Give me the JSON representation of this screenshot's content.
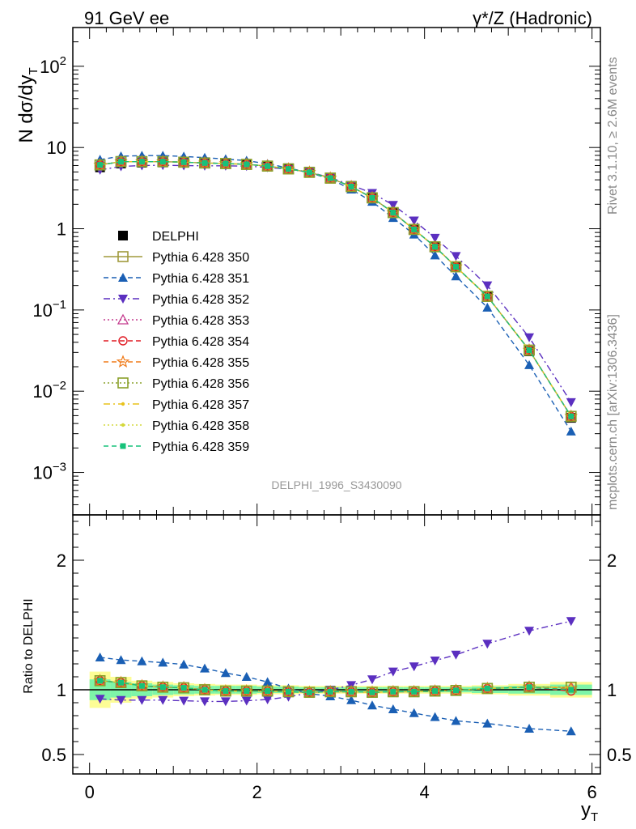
{
  "header": {
    "left": "91 GeV ee",
    "right": "γ*/Z (Hadronic)"
  },
  "side": {
    "rivet": "Rivet 3.1.10, ≥ 2.6M events",
    "mcplots": "mcplots.cern.ch [arXiv:1306.3436]"
  },
  "watermark": "DELPHI_1996_S3430090",
  "chart_data": [
    {
      "type": "line",
      "panel": "main",
      "ylabel": "N dσ/dy_T",
      "yscale": "log",
      "ylim": [
        0.0003,
        300
      ],
      "xlim": [
        -0.2,
        6.1
      ],
      "yticks": [
        "10^-3",
        "10^-2",
        "10^-1",
        "1",
        "10",
        "10^2"
      ],
      "legend_position": "middle-left",
      "x": [
        0.125,
        0.375,
        0.625,
        0.875,
        1.125,
        1.375,
        1.625,
        1.875,
        2.125,
        2.375,
        2.625,
        2.875,
        3.125,
        3.375,
        3.625,
        3.875,
        4.125,
        4.375,
        4.75,
        5.25,
        5.75
      ],
      "series": [
        {
          "name": "DELPHI",
          "color": "#000000",
          "values": [
            5.7,
            6.35,
            6.5,
            6.55,
            6.5,
            6.45,
            6.4,
            6.25,
            5.95,
            5.55,
            5.05,
            4.25,
            3.35,
            2.45,
            1.6,
            1.0,
            0.6,
            0.34,
            0.145,
            0.031,
            0.0047
          ]
        },
        {
          "name": "Pythia 6.428 350",
          "color": "#a09a3c",
          "values": [
            6.1,
            6.7,
            6.7,
            6.7,
            6.6,
            6.45,
            6.35,
            6.2,
            5.9,
            5.45,
            4.95,
            4.2,
            3.3,
            2.4,
            1.58,
            0.98,
            0.6,
            0.34,
            0.147,
            0.032,
            0.0049
          ]
        },
        {
          "name": "Pythia 6.428 351",
          "color": "#1a5fb4",
          "values": [
            7.1,
            7.8,
            7.95,
            7.95,
            7.75,
            7.5,
            7.2,
            6.9,
            6.3,
            5.6,
            4.9,
            4.1,
            3.05,
            2.15,
            1.36,
            0.85,
            0.47,
            0.26,
            0.107,
            0.021,
            0.0032
          ]
        },
        {
          "name": "Pythia 6.428 352",
          "color": "#5b2fc0",
          "values": [
            5.3,
            5.85,
            6.0,
            6.05,
            6.0,
            5.95,
            5.95,
            5.9,
            5.7,
            5.4,
            5.0,
            4.25,
            3.45,
            2.75,
            1.96,
            1.26,
            0.77,
            0.46,
            0.2,
            0.046,
            0.0073
          ]
        },
        {
          "name": "Pythia 6.428 353",
          "color": "#c43a8e",
          "values": [
            6.1,
            6.7,
            6.7,
            6.7,
            6.6,
            6.45,
            6.35,
            6.2,
            5.9,
            5.45,
            4.95,
            4.2,
            3.3,
            2.4,
            1.58,
            0.98,
            0.6,
            0.34,
            0.147,
            0.032,
            0.0049
          ]
        },
        {
          "name": "Pythia 6.428 354",
          "color": "#e01b24",
          "values": [
            6.1,
            6.7,
            6.7,
            6.7,
            6.6,
            6.45,
            6.35,
            6.2,
            5.9,
            5.45,
            4.95,
            4.2,
            3.3,
            2.4,
            1.58,
            0.98,
            0.6,
            0.34,
            0.147,
            0.032,
            0.0049
          ]
        },
        {
          "name": "Pythia 6.428 355",
          "color": "#f07b1a",
          "values": [
            6.1,
            6.7,
            6.7,
            6.7,
            6.6,
            6.45,
            6.35,
            6.2,
            5.9,
            5.45,
            4.95,
            4.2,
            3.3,
            2.4,
            1.58,
            0.98,
            0.6,
            0.34,
            0.147,
            0.032,
            0.0049
          ]
        },
        {
          "name": "Pythia 6.428 356",
          "color": "#8aa02a",
          "values": [
            6.1,
            6.7,
            6.7,
            6.7,
            6.6,
            6.45,
            6.35,
            6.2,
            5.9,
            5.45,
            4.95,
            4.2,
            3.3,
            2.4,
            1.58,
            0.98,
            0.6,
            0.34,
            0.147,
            0.032,
            0.0049
          ]
        },
        {
          "name": "Pythia 6.428 357",
          "color": "#e8c21c",
          "values": [
            6.1,
            6.7,
            6.7,
            6.7,
            6.6,
            6.45,
            6.35,
            6.2,
            5.9,
            5.45,
            4.95,
            4.2,
            3.3,
            2.4,
            1.58,
            0.98,
            0.6,
            0.34,
            0.147,
            0.032,
            0.0049
          ]
        },
        {
          "name": "Pythia 6.428 358",
          "color": "#d4d83a",
          "values": [
            6.1,
            6.7,
            6.7,
            6.7,
            6.6,
            6.45,
            6.35,
            6.2,
            5.9,
            5.45,
            4.95,
            4.2,
            3.3,
            2.4,
            1.58,
            0.98,
            0.6,
            0.34,
            0.147,
            0.032,
            0.0049
          ]
        },
        {
          "name": "Pythia 6.428 359",
          "color": "#17c27a",
          "values": [
            6.1,
            6.7,
            6.7,
            6.7,
            6.6,
            6.45,
            6.35,
            6.2,
            5.9,
            5.45,
            4.95,
            4.2,
            3.3,
            2.4,
            1.58,
            0.98,
            0.6,
            0.34,
            0.147,
            0.032,
            0.0049
          ]
        }
      ]
    },
    {
      "type": "line",
      "panel": "ratio",
      "ylabel": "Ratio to DELPHI",
      "xlabel": "y_T",
      "ylim": [
        0.35,
        2.35
      ],
      "xlim": [
        -0.2,
        6.1
      ],
      "xticks": [
        "0",
        "2",
        "4",
        "6"
      ],
      "yticks": [
        "0.5",
        "1",
        "2"
      ],
      "x": [
        0.125,
        0.375,
        0.625,
        0.875,
        1.125,
        1.375,
        1.625,
        1.875,
        2.125,
        2.375,
        2.625,
        2.875,
        3.125,
        3.375,
        3.625,
        3.875,
        4.125,
        4.375,
        4.75,
        5.25,
        5.75
      ],
      "band_inner": [
        0.08,
        0.06,
        0.05,
        0.04,
        0.035,
        0.03,
        0.03,
        0.03,
        0.025,
        0.025,
        0.02,
        0.02,
        0.02,
        0.02,
        0.02,
        0.02,
        0.02,
        0.02,
        0.025,
        0.03,
        0.04
      ],
      "band_outer": [
        0.14,
        0.1,
        0.07,
        0.06,
        0.05,
        0.045,
        0.04,
        0.04,
        0.035,
        0.035,
        0.03,
        0.03,
        0.03,
        0.03,
        0.03,
        0.03,
        0.03,
        0.03,
        0.035,
        0.045,
        0.06
      ],
      "series": [
        {
          "name": "Pythia 6.428 350",
          "values": [
            1.07,
            1.055,
            1.03,
            1.02,
            1.015,
            1.0,
            0.99,
            0.99,
            0.99,
            0.985,
            0.98,
            0.985,
            0.985,
            0.98,
            0.985,
            0.985,
            0.99,
            0.995,
            1.01,
            1.02,
            1.02
          ]
        },
        {
          "name": "Pythia 6.428 351",
          "values": [
            1.25,
            1.23,
            1.22,
            1.21,
            1.195,
            1.165,
            1.13,
            1.1,
            1.06,
            1.01,
            0.97,
            0.95,
            0.92,
            0.88,
            0.85,
            0.82,
            0.79,
            0.76,
            0.74,
            0.7,
            0.68
          ]
        },
        {
          "name": "Pythia 6.428 352",
          "values": [
            0.93,
            0.92,
            0.92,
            0.92,
            0.915,
            0.91,
            0.91,
            0.915,
            0.925,
            0.945,
            0.975,
            1.0,
            1.035,
            1.08,
            1.14,
            1.18,
            1.225,
            1.27,
            1.355,
            1.455,
            1.53
          ]
        },
        {
          "name": "Pythia 6.428 353",
          "values": [
            1.07,
            1.055,
            1.03,
            1.02,
            1.015,
            1.0,
            0.99,
            0.99,
            0.99,
            0.985,
            0.98,
            0.985,
            0.985,
            0.98,
            0.985,
            0.985,
            0.99,
            0.995,
            1.01,
            1.02,
            1.02
          ]
        },
        {
          "name": "Pythia 6.428 354",
          "values": [
            1.07,
            1.055,
            1.03,
            1.02,
            1.015,
            1.0,
            0.99,
            0.99,
            0.99,
            0.985,
            0.98,
            0.985,
            0.985,
            0.98,
            0.985,
            0.985,
            0.99,
            0.995,
            1.01,
            1.02,
            0.99
          ]
        },
        {
          "name": "Pythia 6.428 355",
          "values": [
            1.07,
            1.055,
            1.03,
            1.02,
            1.015,
            1.0,
            0.99,
            0.99,
            0.99,
            0.985,
            0.98,
            0.985,
            0.985,
            0.98,
            0.985,
            0.985,
            0.99,
            0.995,
            1.01,
            1.02,
            1.01
          ]
        },
        {
          "name": "Pythia 6.428 356",
          "values": [
            1.07,
            1.055,
            1.03,
            1.02,
            1.015,
            1.0,
            0.99,
            0.99,
            0.99,
            0.985,
            0.98,
            0.985,
            0.985,
            0.98,
            0.985,
            0.985,
            0.99,
            0.995,
            1.01,
            1.02,
            1.02
          ]
        },
        {
          "name": "Pythia 6.428 357",
          "values": [
            1.07,
            1.055,
            1.03,
            1.02,
            1.015,
            1.0,
            0.99,
            0.99,
            0.99,
            0.985,
            0.98,
            0.985,
            0.985,
            0.98,
            0.985,
            0.985,
            0.99,
            0.995,
            1.01,
            1.02,
            1.02
          ]
        },
        {
          "name": "Pythia 6.428 358",
          "values": [
            1.07,
            1.055,
            1.03,
            1.02,
            1.015,
            1.0,
            0.99,
            0.99,
            0.99,
            0.985,
            0.98,
            0.985,
            0.985,
            0.98,
            0.985,
            0.985,
            0.99,
            0.995,
            1.01,
            1.02,
            1.02
          ]
        },
        {
          "name": "Pythia 6.428 359",
          "values": [
            1.07,
            1.055,
            1.03,
            1.02,
            1.015,
            1.0,
            0.99,
            0.99,
            0.99,
            0.985,
            0.98,
            0.985,
            0.985,
            0.98,
            0.985,
            0.985,
            0.99,
            0.995,
            1.01,
            1.02,
            1.0
          ]
        }
      ]
    }
  ]
}
